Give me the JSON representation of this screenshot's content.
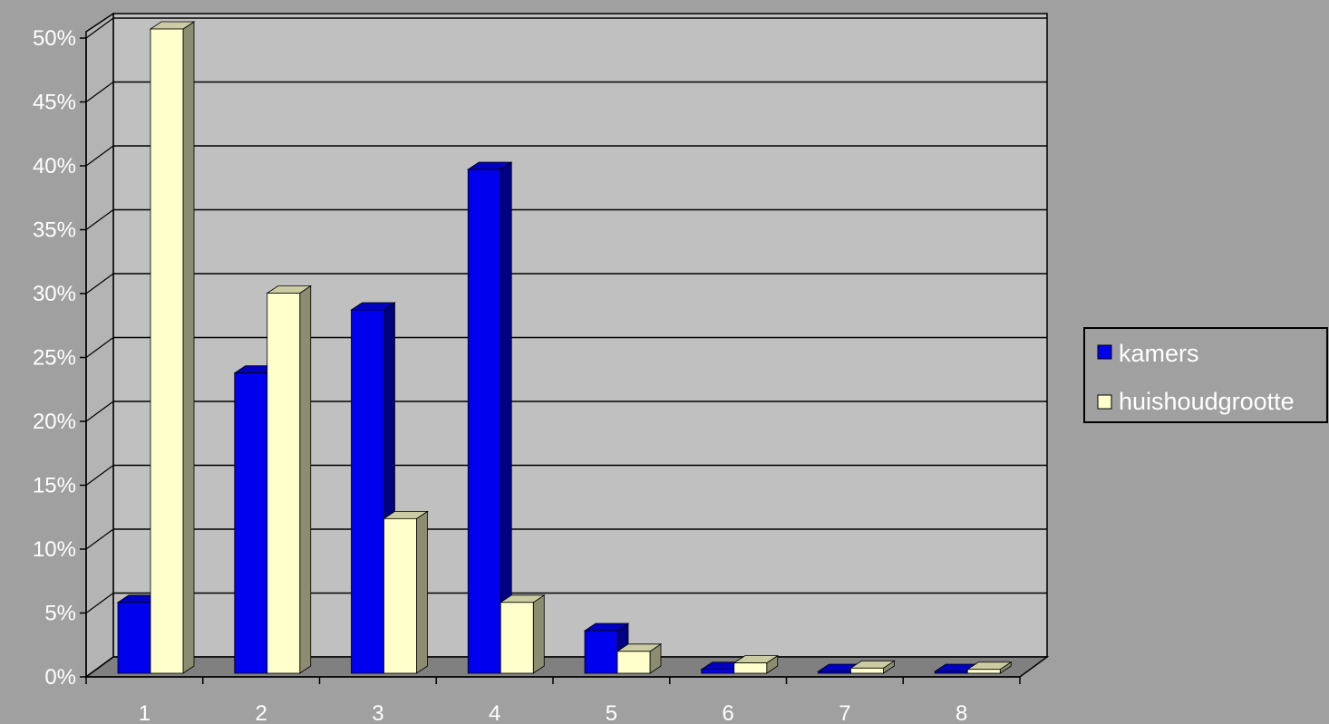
{
  "chart_data": {
    "type": "bar",
    "categories": [
      "1",
      "2",
      "3",
      "4",
      "5",
      "6",
      "7",
      "8"
    ],
    "series": [
      {
        "name": "kamers",
        "color": "#0000ee",
        "values": [
          5.5,
          23.3,
          28.2,
          39.1,
          3.3,
          0.3,
          0.0,
          0.0
        ]
      },
      {
        "name": "huishoudgrootte",
        "color": "#ffffcc",
        "values": [
          50.0,
          29.5,
          12.0,
          5.5,
          1.7,
          0.8,
          0.4,
          0.3
        ]
      }
    ],
    "y_ticks": [
      "0%",
      "5%",
      "10%",
      "15%",
      "20%",
      "25%",
      "30%",
      "35%",
      "40%",
      "45%",
      "50%"
    ],
    "ylim": [
      0,
      50
    ],
    "grid": true,
    "legend": "right",
    "style": "3d-clustered-column"
  }
}
